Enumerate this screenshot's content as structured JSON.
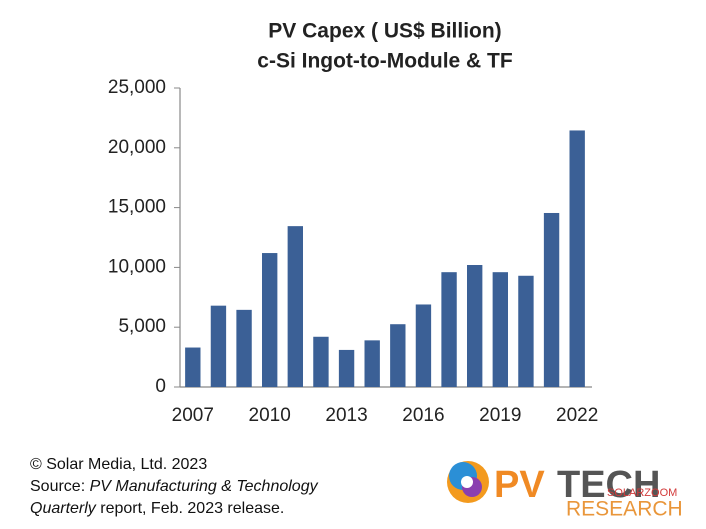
{
  "chart_data": {
    "type": "bar",
    "title": "PV Capex ( US$ Billion)",
    "subtitle": "c-Si Ingot-to-Module & TF",
    "categories": [
      "2007",
      null,
      null,
      "2010",
      null,
      null,
      "2013",
      null,
      null,
      "2016",
      null,
      null,
      "2019",
      null,
      null,
      "2022"
    ],
    "values": [
      3300,
      6800,
      6450,
      11200,
      13450,
      4200,
      3100,
      3900,
      5250,
      6900,
      9600,
      10200,
      9600,
      9300,
      14550,
      21450
    ],
    "color": "#3b6096",
    "ylim": [
      0,
      25000
    ],
    "yticks": [
      0,
      {
        "value": 5000,
        "label": "5,000"
      },
      {
        "value": 10000,
        "label": "10,000"
      },
      {
        "value": 15000,
        "label": "15,000"
      },
      {
        "value": 20000,
        "label": "20,000"
      },
      {
        "value": 25000,
        "label": "25,000"
      }
    ],
    "grid": false
  },
  "footer": {
    "copyright": "© Solar Media, Ltd. 2023",
    "source_prefix": "Source: ",
    "source_title": "PV Manufacturing & Technology Quarterly",
    "source_suffix": " report, Feb. 2023 release."
  },
  "logo": {
    "name_1": "PV",
    "name_2": "TECH",
    "tagline": "RESEARCH",
    "watermark": "SOLARZOOM"
  }
}
